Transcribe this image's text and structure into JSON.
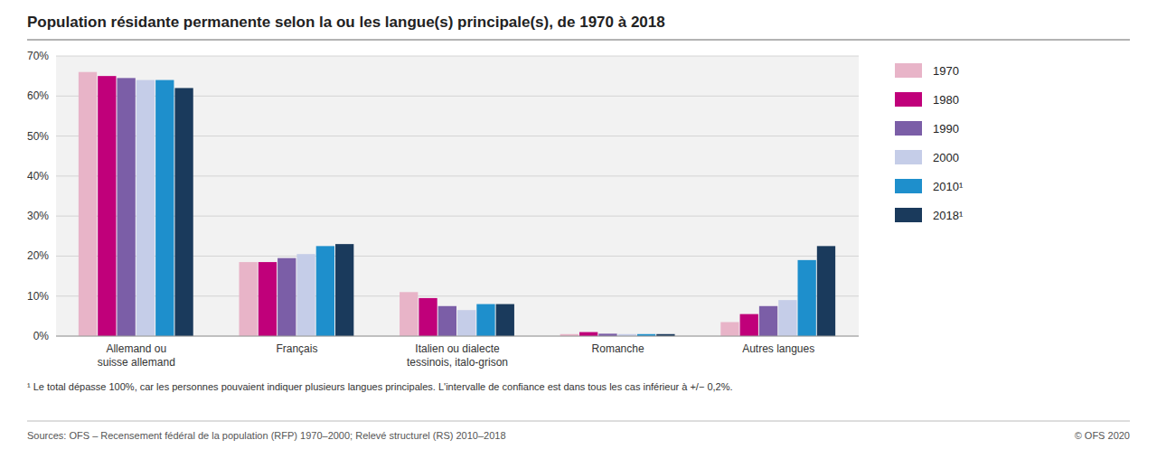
{
  "chart_data": {
    "type": "bar",
    "title": "Population résidante permanente selon la ou les langue(s) principale(s), de 1970 à 2018",
    "categories": [
      "Allemand ou\nsuisse allemand",
      "Français",
      "Italien ou dialecte\ntessinois, italo-grison",
      "Romanche",
      "Autres langues"
    ],
    "series": [
      {
        "name": "1970",
        "color": "#e8b4c8",
        "values": [
          66.0,
          18.5,
          11.0,
          0.5,
          3.5
        ]
      },
      {
        "name": "1980",
        "color": "#c0007a",
        "values": [
          65.0,
          18.5,
          9.5,
          1.0,
          5.5
        ]
      },
      {
        "name": "1990",
        "color": "#7b5ea7",
        "values": [
          64.5,
          19.5,
          7.5,
          0.6,
          7.5
        ]
      },
      {
        "name": "2000",
        "color": "#c5cde8",
        "values": [
          64.0,
          20.5,
          6.5,
          0.5,
          9.0
        ]
      },
      {
        "name": "2010¹",
        "color": "#1e8fcc",
        "values": [
          64.0,
          22.5,
          8.0,
          0.5,
          19.0
        ]
      },
      {
        "name": "2018¹",
        "color": "#1a3a5c",
        "values": [
          62.0,
          23.0,
          8.0,
          0.5,
          22.5
        ]
      }
    ],
    "ylim": [
      0,
      70
    ],
    "yticks": [
      {
        "value": 0,
        "label": "0%"
      },
      {
        "value": 10,
        "label": "10%"
      },
      {
        "value": 20,
        "label": "20%"
      },
      {
        "value": 30,
        "label": "30%"
      },
      {
        "value": 40,
        "label": "40%"
      },
      {
        "value": 50,
        "label": "50%"
      },
      {
        "value": 60,
        "label": "60%"
      },
      {
        "value": 70,
        "label": "70%"
      }
    ],
    "grid": true,
    "legend": "right",
    "annotations": [
      "¹  Le total dépasse 100%, car les personnes pouvaient indiquer plusieurs langues principales. L'intervalle de confiance est dans tous les cas inférieur à +/− 0,2%.",
      "Sources: OFS – Recensement fédéral de la population (RFP) 1970–2000; Relevé structurel (RS) 2010–2018",
      "© OFS 2020"
    ]
  }
}
